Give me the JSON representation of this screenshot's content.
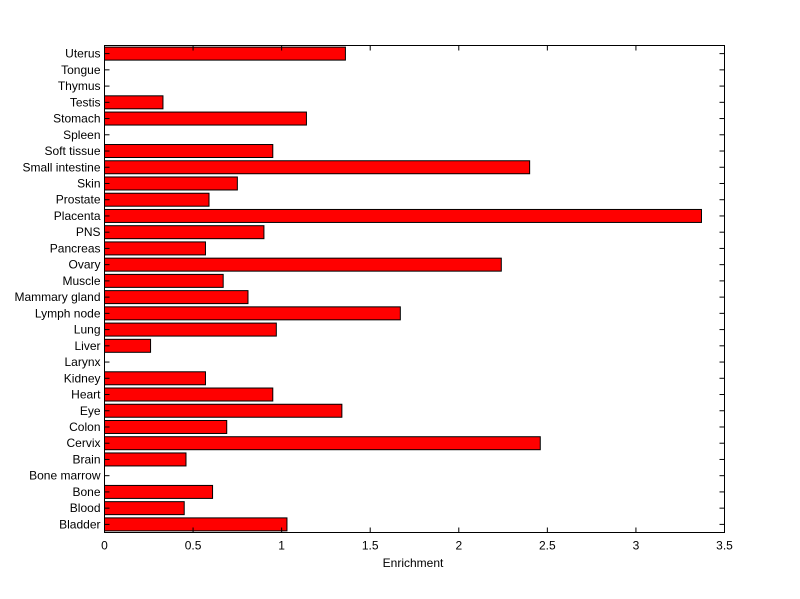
{
  "chart_data": {
    "type": "bar",
    "orientation": "horizontal",
    "title": "",
    "xlabel": "Enrichment",
    "ylabel": "",
    "xlim": [
      0,
      3.5
    ],
    "xticks": [
      "0",
      "0.5",
      "1",
      "1.5",
      "2",
      "2.5",
      "3",
      "3.5"
    ],
    "grid": false,
    "bar_color": "#ff0000",
    "categories": [
      "Uterus",
      "Tongue",
      "Thymus",
      "Testis",
      "Stomach",
      "Spleen",
      "Soft tissue",
      "Small intestine",
      "Skin",
      "Prostate",
      "Placenta",
      "PNS",
      "Pancreas",
      "Ovary",
      "Muscle",
      "Mammary gland",
      "Lymph node",
      "Lung",
      "Liver",
      "Larynx",
      "Kidney",
      "Heart",
      "Eye",
      "Colon",
      "Cervix",
      "Brain",
      "Bone marrow",
      "Bone",
      "Blood",
      "Bladder"
    ],
    "values": [
      1.36,
      0,
      0,
      0.33,
      1.14,
      0,
      0.95,
      2.4,
      0.75,
      0.59,
      3.37,
      0.9,
      0.57,
      2.24,
      0.67,
      0.81,
      1.67,
      0.97,
      0.26,
      0,
      0.57,
      0.95,
      1.34,
      0.69,
      2.46,
      0.46,
      0,
      0.61,
      0.45,
      1.03
    ]
  }
}
